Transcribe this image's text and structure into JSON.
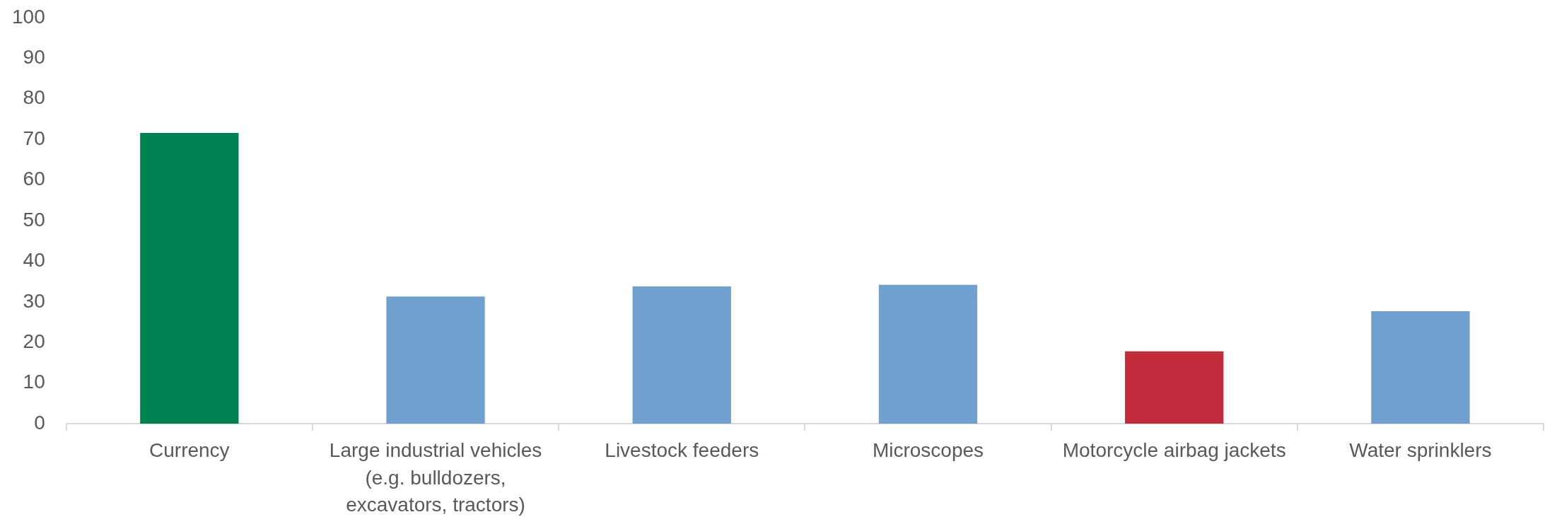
{
  "chart_data": {
    "type": "bar",
    "categories": [
      "Currency",
      "Large industrial vehicles (e.g. bulldozers, excavators, tractors)",
      "Livestock feeders",
      "Microscopes",
      "Motorcycle airbag jackets",
      "Water sprinklers"
    ],
    "values": [
      71.6,
      31.3,
      33.8,
      34.2,
      17.8,
      27.7
    ],
    "colors": [
      "#008350",
      "#70a0d0",
      "#70a0d0",
      "#70a0d0",
      "#c32a3a",
      "#70a0d0"
    ],
    "ylim": [
      0,
      100
    ],
    "yticks": [
      0,
      10,
      20,
      30,
      40,
      50,
      60,
      70,
      80,
      90,
      100
    ],
    "grid": false,
    "legend": false
  }
}
